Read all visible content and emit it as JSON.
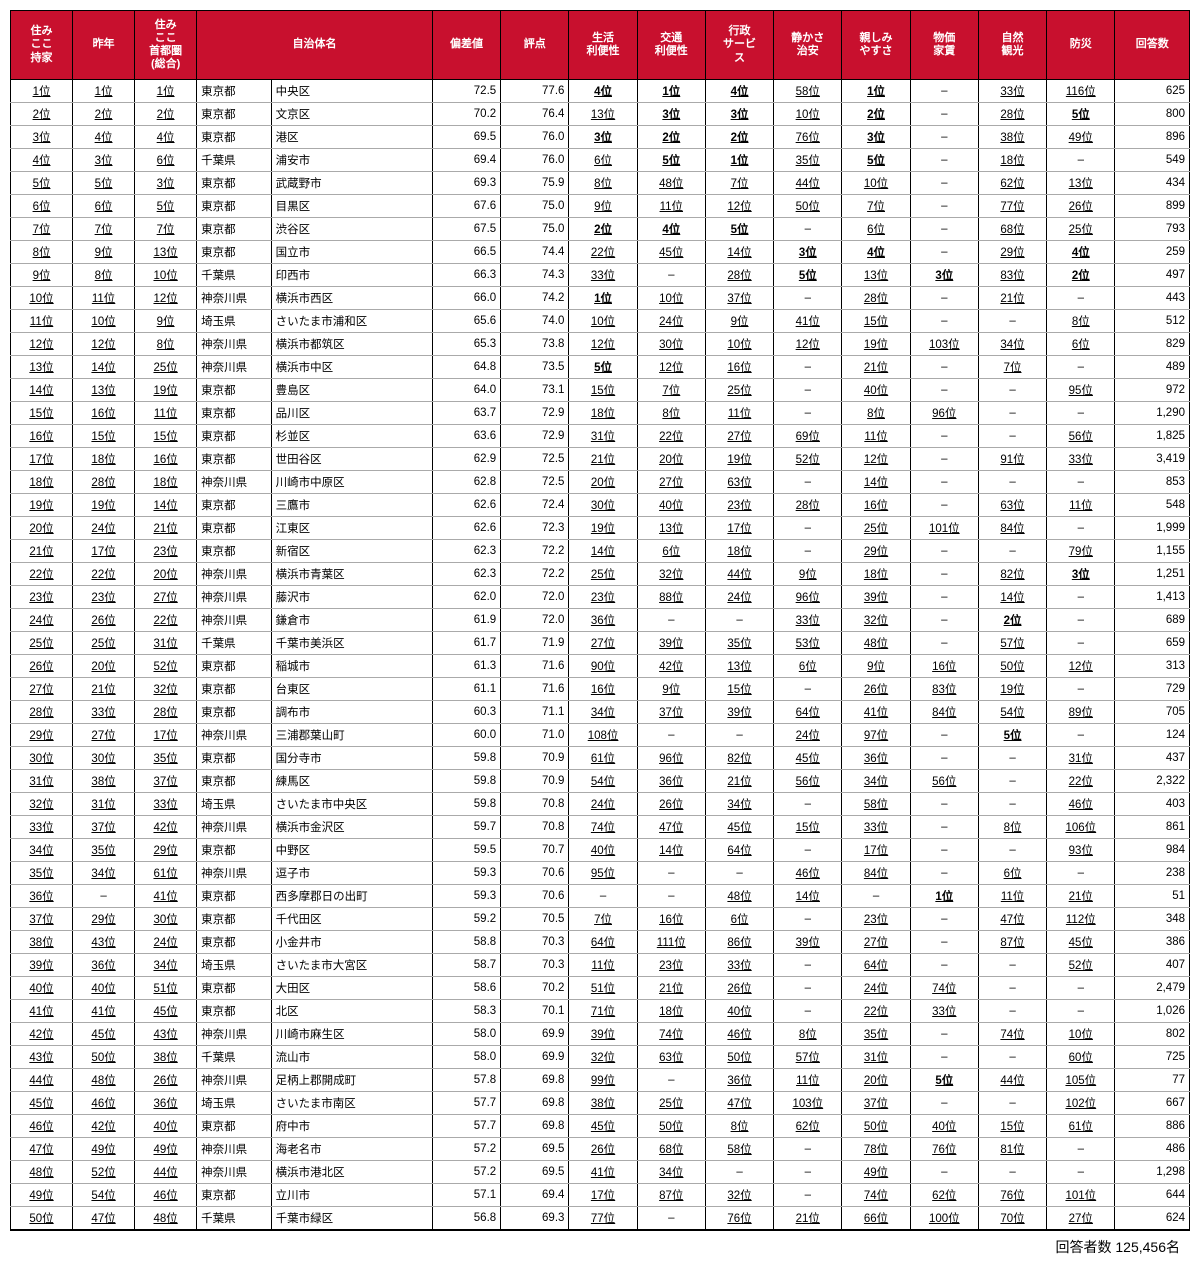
{
  "headers": [
    "住み\nここ\n持家",
    "昨年",
    "住み\nここ\n首都圏\n(総合)",
    "自治体名",
    "偏差値",
    "評点",
    "生活\n利便性",
    "交通\n利便性",
    "行政\nサービ\nス",
    "静かさ\n治安",
    "親しみ\nやすさ",
    "物価\n家賃",
    "自然\n観光",
    "防災",
    "回答数"
  ],
  "footer_label": "回答者数",
  "footer_value": "125,456名",
  "rows": [
    {
      "r1": "1位",
      "r2": "1位",
      "r3": "1位",
      "pref": "東京都",
      "city": "中央区",
      "dev": "72.5",
      "score": "77.6",
      "c1": "4位",
      "c1b": true,
      "c2": "1位",
      "c2b": true,
      "c3": "4位",
      "c3b": true,
      "c4": "58位",
      "c5": "1位",
      "c5b": true,
      "c6": "–",
      "c7": "33位",
      "c8": "116位",
      "resp": "625"
    },
    {
      "r1": "2位",
      "r2": "2位",
      "r3": "2位",
      "pref": "東京都",
      "city": "文京区",
      "dev": "70.2",
      "score": "76.4",
      "c1": "13位",
      "c2": "3位",
      "c2b": true,
      "c3": "3位",
      "c3b": true,
      "c4": "10位",
      "c5": "2位",
      "c5b": true,
      "c6": "–",
      "c7": "28位",
      "c8": "5位",
      "c8b": true,
      "resp": "800"
    },
    {
      "r1": "3位",
      "r2": "4位",
      "r3": "4位",
      "pref": "東京都",
      "city": "港区",
      "dev": "69.5",
      "score": "76.0",
      "c1": "3位",
      "c1b": true,
      "c2": "2位",
      "c2b": true,
      "c3": "2位",
      "c3b": true,
      "c4": "76位",
      "c5": "3位",
      "c5b": true,
      "c6": "–",
      "c7": "38位",
      "c8": "49位",
      "resp": "896"
    },
    {
      "r1": "4位",
      "r2": "3位",
      "r3": "6位",
      "pref": "千葉県",
      "city": "浦安市",
      "dev": "69.4",
      "score": "76.0",
      "c1": "6位",
      "c2": "5位",
      "c2b": true,
      "c3": "1位",
      "c3b": true,
      "c4": "35位",
      "c5": "5位",
      "c5b": true,
      "c6": "–",
      "c7": "18位",
      "c8": "–",
      "resp": "549"
    },
    {
      "r1": "5位",
      "r2": "5位",
      "r3": "3位",
      "pref": "東京都",
      "city": "武蔵野市",
      "dev": "69.3",
      "score": "75.9",
      "c1": "8位",
      "c2": "48位",
      "c3": "7位",
      "c4": "44位",
      "c5": "10位",
      "c6": "–",
      "c7": "62位",
      "c8": "13位",
      "resp": "434"
    },
    {
      "r1": "6位",
      "r2": "6位",
      "r3": "5位",
      "pref": "東京都",
      "city": "目黒区",
      "dev": "67.6",
      "score": "75.0",
      "c1": "9位",
      "c2": "11位",
      "c3": "12位",
      "c4": "50位",
      "c5": "7位",
      "c6": "–",
      "c7": "77位",
      "c8": "26位",
      "resp": "899"
    },
    {
      "r1": "7位",
      "r2": "7位",
      "r3": "7位",
      "pref": "東京都",
      "city": "渋谷区",
      "dev": "67.5",
      "score": "75.0",
      "c1": "2位",
      "c1b": true,
      "c2": "4位",
      "c2b": true,
      "c3": "5位",
      "c3b": true,
      "c4": "–",
      "c5": "6位",
      "c6": "–",
      "c7": "68位",
      "c8": "25位",
      "resp": "793"
    },
    {
      "r1": "8位",
      "r2": "9位",
      "r3": "13位",
      "pref": "東京都",
      "city": "国立市",
      "dev": "66.5",
      "score": "74.4",
      "c1": "22位",
      "c2": "45位",
      "c3": "14位",
      "c4": "3位",
      "c4b": true,
      "c5": "4位",
      "c5b": true,
      "c6": "–",
      "c7": "29位",
      "c8": "4位",
      "c8b": true,
      "resp": "259"
    },
    {
      "r1": "9位",
      "r2": "8位",
      "r3": "10位",
      "pref": "千葉県",
      "city": "印西市",
      "dev": "66.3",
      "score": "74.3",
      "c1": "33位",
      "c2": "–",
      "c3": "28位",
      "c4": "5位",
      "c4b": true,
      "c5": "13位",
      "c6": "3位",
      "c6b": true,
      "c7": "83位",
      "c8": "2位",
      "c8b": true,
      "resp": "497"
    },
    {
      "r1": "10位",
      "r2": "11位",
      "r3": "12位",
      "pref": "神奈川県",
      "city": "横浜市西区",
      "dev": "66.0",
      "score": "74.2",
      "c1": "1位",
      "c1b": true,
      "c2": "10位",
      "c3": "37位",
      "c4": "–",
      "c5": "28位",
      "c6": "–",
      "c7": "21位",
      "c8": "–",
      "resp": "443"
    },
    {
      "r1": "11位",
      "r2": "10位",
      "r3": "9位",
      "pref": "埼玉県",
      "city": "さいたま市浦和区",
      "dev": "65.6",
      "score": "74.0",
      "c1": "10位",
      "c2": "24位",
      "c3": "9位",
      "c4": "41位",
      "c5": "15位",
      "c6": "–",
      "c7": "–",
      "c8": "8位",
      "resp": "512"
    },
    {
      "r1": "12位",
      "r2": "12位",
      "r3": "8位",
      "pref": "神奈川県",
      "city": "横浜市都筑区",
      "dev": "65.3",
      "score": "73.8",
      "c1": "12位",
      "c2": "30位",
      "c3": "10位",
      "c4": "12位",
      "c5": "19位",
      "c6": "103位",
      "c7": "34位",
      "c8": "6位",
      "resp": "829"
    },
    {
      "r1": "13位",
      "r2": "14位",
      "r3": "25位",
      "pref": "神奈川県",
      "city": "横浜市中区",
      "dev": "64.8",
      "score": "73.5",
      "c1": "5位",
      "c1b": true,
      "c2": "12位",
      "c3": "16位",
      "c4": "–",
      "c5": "21位",
      "c6": "–",
      "c7": "7位",
      "c8": "–",
      "resp": "489"
    },
    {
      "r1": "14位",
      "r2": "13位",
      "r3": "19位",
      "pref": "東京都",
      "city": "豊島区",
      "dev": "64.0",
      "score": "73.1",
      "c1": "15位",
      "c2": "7位",
      "c3": "25位",
      "c4": "–",
      "c5": "40位",
      "c6": "–",
      "c7": "–",
      "c8": "95位",
      "resp": "972"
    },
    {
      "r1": "15位",
      "r2": "16位",
      "r3": "11位",
      "pref": "東京都",
      "city": "品川区",
      "dev": "63.7",
      "score": "72.9",
      "c1": "18位",
      "c2": "8位",
      "c3": "11位",
      "c4": "–",
      "c5": "8位",
      "c6": "96位",
      "c7": "–",
      "c8": "–",
      "resp": "1,290"
    },
    {
      "r1": "16位",
      "r2": "15位",
      "r3": "15位",
      "pref": "東京都",
      "city": "杉並区",
      "dev": "63.6",
      "score": "72.9",
      "c1": "31位",
      "c2": "22位",
      "c3": "27位",
      "c4": "69位",
      "c5": "11位",
      "c6": "–",
      "c7": "–",
      "c8": "56位",
      "resp": "1,825"
    },
    {
      "r1": "17位",
      "r2": "18位",
      "r3": "16位",
      "pref": "東京都",
      "city": "世田谷区",
      "dev": "62.9",
      "score": "72.5",
      "c1": "21位",
      "c2": "20位",
      "c3": "19位",
      "c4": "52位",
      "c5": "12位",
      "c6": "–",
      "c7": "91位",
      "c8": "33位",
      "resp": "3,419"
    },
    {
      "r1": "18位",
      "r2": "28位",
      "r3": "18位",
      "pref": "神奈川県",
      "city": "川崎市中原区",
      "dev": "62.8",
      "score": "72.5",
      "c1": "20位",
      "c2": "27位",
      "c3": "63位",
      "c4": "–",
      "c5": "14位",
      "c6": "–",
      "c7": "–",
      "c8": "–",
      "resp": "853"
    },
    {
      "r1": "19位",
      "r2": "19位",
      "r3": "14位",
      "pref": "東京都",
      "city": "三鷹市",
      "dev": "62.6",
      "score": "72.4",
      "c1": "30位",
      "c2": "40位",
      "c3": "23位",
      "c4": "28位",
      "c5": "16位",
      "c6": "–",
      "c7": "63位",
      "c8": "11位",
      "resp": "548"
    },
    {
      "r1": "20位",
      "r2": "24位",
      "r3": "21位",
      "pref": "東京都",
      "city": "江東区",
      "dev": "62.6",
      "score": "72.3",
      "c1": "19位",
      "c2": "13位",
      "c3": "17位",
      "c4": "–",
      "c5": "25位",
      "c6": "101位",
      "c7": "84位",
      "c8": "–",
      "resp": "1,999"
    },
    {
      "r1": "21位",
      "r2": "17位",
      "r3": "23位",
      "pref": "東京都",
      "city": "新宿区",
      "dev": "62.3",
      "score": "72.2",
      "c1": "14位",
      "c2": "6位",
      "c3": "18位",
      "c4": "–",
      "c5": "29位",
      "c6": "–",
      "c7": "–",
      "c8": "79位",
      "resp": "1,155"
    },
    {
      "r1": "22位",
      "r2": "22位",
      "r3": "20位",
      "pref": "神奈川県",
      "city": "横浜市青葉区",
      "dev": "62.3",
      "score": "72.2",
      "c1": "25位",
      "c2": "32位",
      "c3": "44位",
      "c4": "9位",
      "c5": "18位",
      "c6": "–",
      "c7": "82位",
      "c8": "3位",
      "c8b": true,
      "resp": "1,251"
    },
    {
      "r1": "23位",
      "r2": "23位",
      "r3": "27位",
      "pref": "神奈川県",
      "city": "藤沢市",
      "dev": "62.0",
      "score": "72.0",
      "c1": "23位",
      "c2": "88位",
      "c3": "24位",
      "c4": "96位",
      "c5": "39位",
      "c6": "–",
      "c7": "14位",
      "c8": "–",
      "resp": "1,413"
    },
    {
      "r1": "24位",
      "r2": "26位",
      "r3": "22位",
      "pref": "神奈川県",
      "city": "鎌倉市",
      "dev": "61.9",
      "score": "72.0",
      "c1": "36位",
      "c2": "–",
      "c3": "–",
      "c4": "33位",
      "c5": "32位",
      "c6": "–",
      "c7": "2位",
      "c7b": true,
      "c8": "–",
      "resp": "689"
    },
    {
      "r1": "25位",
      "r2": "25位",
      "r3": "31位",
      "pref": "千葉県",
      "city": "千葉市美浜区",
      "dev": "61.7",
      "score": "71.9",
      "c1": "27位",
      "c2": "39位",
      "c3": "35位",
      "c4": "53位",
      "c5": "48位",
      "c6": "–",
      "c7": "57位",
      "c8": "–",
      "resp": "659"
    },
    {
      "r1": "26位",
      "r2": "20位",
      "r3": "52位",
      "pref": "東京都",
      "city": "稲城市",
      "dev": "61.3",
      "score": "71.6",
      "c1": "90位",
      "c2": "42位",
      "c3": "13位",
      "c4": "6位",
      "c5": "9位",
      "c6": "16位",
      "c7": "50位",
      "c8": "12位",
      "resp": "313"
    },
    {
      "r1": "27位",
      "r2": "21位",
      "r3": "32位",
      "pref": "東京都",
      "city": "台東区",
      "dev": "61.1",
      "score": "71.6",
      "c1": "16位",
      "c2": "9位",
      "c3": "15位",
      "c4": "–",
      "c5": "26位",
      "c6": "83位",
      "c7": "19位",
      "c8": "–",
      "resp": "729"
    },
    {
      "r1": "28位",
      "r2": "33位",
      "r3": "28位",
      "pref": "東京都",
      "city": "調布市",
      "dev": "60.3",
      "score": "71.1",
      "c1": "34位",
      "c2": "37位",
      "c3": "39位",
      "c4": "64位",
      "c5": "41位",
      "c6": "84位",
      "c7": "54位",
      "c8": "89位",
      "resp": "705"
    },
    {
      "r1": "29位",
      "r2": "27位",
      "r3": "17位",
      "pref": "神奈川県",
      "city": "三浦郡葉山町",
      "dev": "60.0",
      "score": "71.0",
      "c1": "108位",
      "c2": "–",
      "c3": "–",
      "c4": "24位",
      "c5": "97位",
      "c6": "–",
      "c7": "5位",
      "c7b": true,
      "c8": "–",
      "resp": "124"
    },
    {
      "r1": "30位",
      "r2": "30位",
      "r3": "35位",
      "pref": "東京都",
      "city": "国分寺市",
      "dev": "59.8",
      "score": "70.9",
      "c1": "61位",
      "c2": "96位",
      "c3": "82位",
      "c4": "45位",
      "c5": "36位",
      "c6": "–",
      "c7": "–",
      "c8": "31位",
      "resp": "437"
    },
    {
      "r1": "31位",
      "r2": "38位",
      "r3": "37位",
      "pref": "東京都",
      "city": "練馬区",
      "dev": "59.8",
      "score": "70.9",
      "c1": "54位",
      "c2": "36位",
      "c3": "21位",
      "c4": "56位",
      "c5": "34位",
      "c6": "56位",
      "c7": "–",
      "c8": "22位",
      "resp": "2,322"
    },
    {
      "r1": "32位",
      "r2": "31位",
      "r3": "33位",
      "pref": "埼玉県",
      "city": "さいたま市中央区",
      "dev": "59.8",
      "score": "70.8",
      "c1": "24位",
      "c2": "26位",
      "c3": "34位",
      "c4": "–",
      "c5": "58位",
      "c6": "–",
      "c7": "–",
      "c8": "46位",
      "resp": "403"
    },
    {
      "r1": "33位",
      "r2": "37位",
      "r3": "42位",
      "pref": "神奈川県",
      "city": "横浜市金沢区",
      "dev": "59.7",
      "score": "70.8",
      "c1": "74位",
      "c2": "47位",
      "c3": "45位",
      "c4": "15位",
      "c5": "33位",
      "c6": "–",
      "c7": "8位",
      "c8": "106位",
      "resp": "861"
    },
    {
      "r1": "34位",
      "r2": "35位",
      "r3": "29位",
      "pref": "東京都",
      "city": "中野区",
      "dev": "59.5",
      "score": "70.7",
      "c1": "40位",
      "c2": "14位",
      "c3": "64位",
      "c4": "–",
      "c5": "17位",
      "c6": "–",
      "c7": "–",
      "c8": "93位",
      "resp": "984"
    },
    {
      "r1": "35位",
      "r2": "34位",
      "r3": "61位",
      "pref": "神奈川県",
      "city": "逗子市",
      "dev": "59.3",
      "score": "70.6",
      "c1": "95位",
      "c2": "–",
      "c3": "–",
      "c4": "46位",
      "c5": "84位",
      "c6": "–",
      "c7": "6位",
      "c8": "–",
      "resp": "238"
    },
    {
      "r1": "36位",
      "r2": "–",
      "r3": "41位",
      "pref": "東京都",
      "city": "西多摩郡日の出町",
      "dev": "59.3",
      "score": "70.6",
      "c1": "–",
      "c2": "–",
      "c3": "48位",
      "c4": "14位",
      "c5": "–",
      "c6": "1位",
      "c6b": true,
      "c7": "11位",
      "c8": "21位",
      "resp": "51"
    },
    {
      "r1": "37位",
      "r2": "29位",
      "r3": "30位",
      "pref": "東京都",
      "city": "千代田区",
      "dev": "59.2",
      "score": "70.5",
      "c1": "7位",
      "c2": "16位",
      "c3": "6位",
      "c4": "–",
      "c5": "23位",
      "c6": "–",
      "c7": "47位",
      "c8": "112位",
      "resp": "348"
    },
    {
      "r1": "38位",
      "r2": "43位",
      "r3": "24位",
      "pref": "東京都",
      "city": "小金井市",
      "dev": "58.8",
      "score": "70.3",
      "c1": "64位",
      "c2": "111位",
      "c3": "86位",
      "c4": "39位",
      "c5": "27位",
      "c6": "–",
      "c7": "87位",
      "c8": "45位",
      "resp": "386"
    },
    {
      "r1": "39位",
      "r2": "36位",
      "r3": "34位",
      "pref": "埼玉県",
      "city": "さいたま市大宮区",
      "dev": "58.7",
      "score": "70.3",
      "c1": "11位",
      "c2": "23位",
      "c3": "33位",
      "c4": "–",
      "c5": "64位",
      "c6": "–",
      "c7": "–",
      "c8": "52位",
      "resp": "407"
    },
    {
      "r1": "40位",
      "r2": "40位",
      "r3": "51位",
      "pref": "東京都",
      "city": "大田区",
      "dev": "58.6",
      "score": "70.2",
      "c1": "51位",
      "c2": "21位",
      "c3": "26位",
      "c4": "–",
      "c5": "24位",
      "c6": "74位",
      "c7": "–",
      "c8": "–",
      "resp": "2,479"
    },
    {
      "r1": "41位",
      "r2": "41位",
      "r3": "45位",
      "pref": "東京都",
      "city": "北区",
      "dev": "58.3",
      "score": "70.1",
      "c1": "71位",
      "c2": "18位",
      "c3": "40位",
      "c4": "–",
      "c5": "22位",
      "c6": "33位",
      "c7": "–",
      "c8": "–",
      "resp": "1,026"
    },
    {
      "r1": "42位",
      "r2": "45位",
      "r3": "43位",
      "pref": "神奈川県",
      "city": "川崎市麻生区",
      "dev": "58.0",
      "score": "69.9",
      "c1": "39位",
      "c2": "74位",
      "c3": "46位",
      "c4": "8位",
      "c5": "35位",
      "c6": "–",
      "c7": "74位",
      "c8": "10位",
      "resp": "802"
    },
    {
      "r1": "43位",
      "r2": "50位",
      "r3": "38位",
      "pref": "千葉県",
      "city": "流山市",
      "dev": "58.0",
      "score": "69.9",
      "c1": "32位",
      "c2": "63位",
      "c3": "50位",
      "c4": "57位",
      "c5": "31位",
      "c6": "–",
      "c7": "–",
      "c8": "60位",
      "resp": "725"
    },
    {
      "r1": "44位",
      "r2": "48位",
      "r3": "26位",
      "pref": "神奈川県",
      "city": "足柄上郡開成町",
      "dev": "57.8",
      "score": "69.8",
      "c1": "99位",
      "c2": "–",
      "c3": "36位",
      "c4": "11位",
      "c5": "20位",
      "c6": "5位",
      "c6b": true,
      "c7": "44位",
      "c8": "105位",
      "resp": "77"
    },
    {
      "r1": "45位",
      "r2": "46位",
      "r3": "36位",
      "pref": "埼玉県",
      "city": "さいたま市南区",
      "dev": "57.7",
      "score": "69.8",
      "c1": "38位",
      "c2": "25位",
      "c3": "47位",
      "c4": "103位",
      "c5": "37位",
      "c6": "–",
      "c7": "–",
      "c8": "102位",
      "resp": "667"
    },
    {
      "r1": "46位",
      "r2": "42位",
      "r3": "40位",
      "pref": "東京都",
      "city": "府中市",
      "dev": "57.7",
      "score": "69.8",
      "c1": "45位",
      "c2": "50位",
      "c3": "8位",
      "c4": "62位",
      "c5": "50位",
      "c6": "40位",
      "c7": "15位",
      "c8": "61位",
      "resp": "886"
    },
    {
      "r1": "47位",
      "r2": "49位",
      "r3": "49位",
      "pref": "神奈川県",
      "city": "海老名市",
      "dev": "57.2",
      "score": "69.5",
      "c1": "26位",
      "c2": "68位",
      "c3": "58位",
      "c4": "–",
      "c5": "78位",
      "c6": "76位",
      "c7": "81位",
      "c8": "–",
      "resp": "486"
    },
    {
      "r1": "48位",
      "r2": "52位",
      "r3": "44位",
      "pref": "神奈川県",
      "city": "横浜市港北区",
      "dev": "57.2",
      "score": "69.5",
      "c1": "41位",
      "c2": "34位",
      "c3": "–",
      "c4": "–",
      "c5": "49位",
      "c6": "–",
      "c7": "–",
      "c8": "–",
      "resp": "1,298"
    },
    {
      "r1": "49位",
      "r2": "54位",
      "r3": "46位",
      "pref": "東京都",
      "city": "立川市",
      "dev": "57.1",
      "score": "69.4",
      "c1": "17位",
      "c2": "87位",
      "c3": "32位",
      "c4": "–",
      "c5": "74位",
      "c6": "62位",
      "c7": "76位",
      "c8": "101位",
      "resp": "644"
    },
    {
      "r1": "50位",
      "r2": "47位",
      "r3": "48位",
      "pref": "千葉県",
      "city": "千葉市緑区",
      "dev": "56.8",
      "score": "69.3",
      "c1": "77位",
      "c2": "–",
      "c3": "76位",
      "c4": "21位",
      "c5": "66位",
      "c6": "100位",
      "c7": "70位",
      "c8": "27位",
      "resp": "624"
    }
  ]
}
